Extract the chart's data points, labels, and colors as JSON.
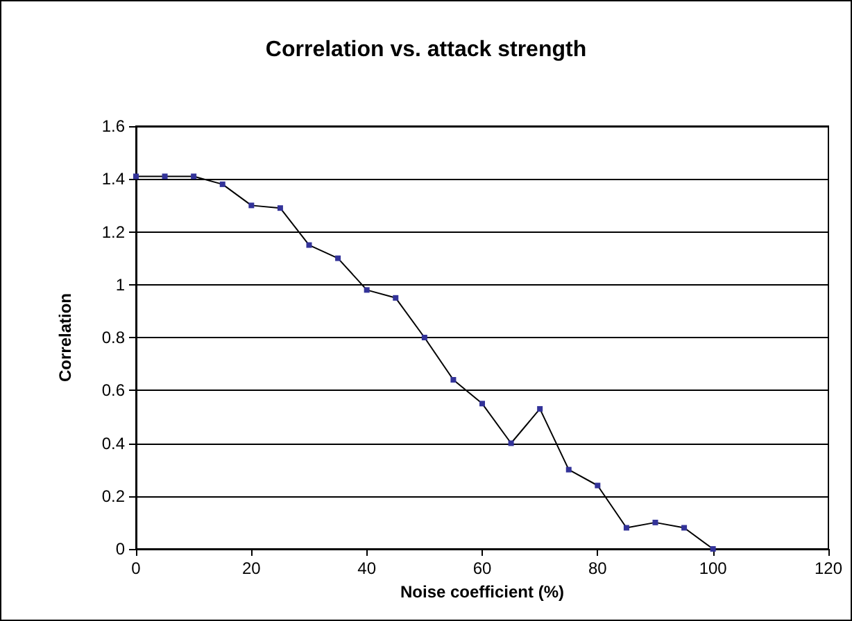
{
  "chart_data": {
    "type": "line",
    "title": "Correlation vs. attack strength",
    "xlabel": "Noise coefficient (%)",
    "ylabel": "Correlation",
    "x": [
      0,
      5,
      10,
      15,
      20,
      25,
      30,
      35,
      40,
      45,
      50,
      55,
      60,
      65,
      70,
      75,
      80,
      85,
      90,
      95,
      100
    ],
    "series": [
      {
        "color": "#000000",
        "values": [
          1.41,
          1.41,
          1.41,
          1.38,
          1.3,
          1.29,
          1.15,
          1.1,
          0.98,
          0.95,
          0.8,
          0.64,
          0.55,
          0.4,
          0.53,
          0.3,
          0.24,
          0.08,
          0.1,
          0.08,
          0.0
        ]
      }
    ],
    "xlim": [
      0,
      120
    ],
    "xticks": [
      0,
      20,
      40,
      60,
      80,
      100,
      120
    ],
    "ylim": [
      0,
      1.6
    ],
    "yticks": [
      0,
      0.2,
      0.4,
      0.6,
      0.8,
      1,
      1.2,
      1.4,
      1.6
    ],
    "grid": "y",
    "marker": "square",
    "line_style": "solid"
  }
}
